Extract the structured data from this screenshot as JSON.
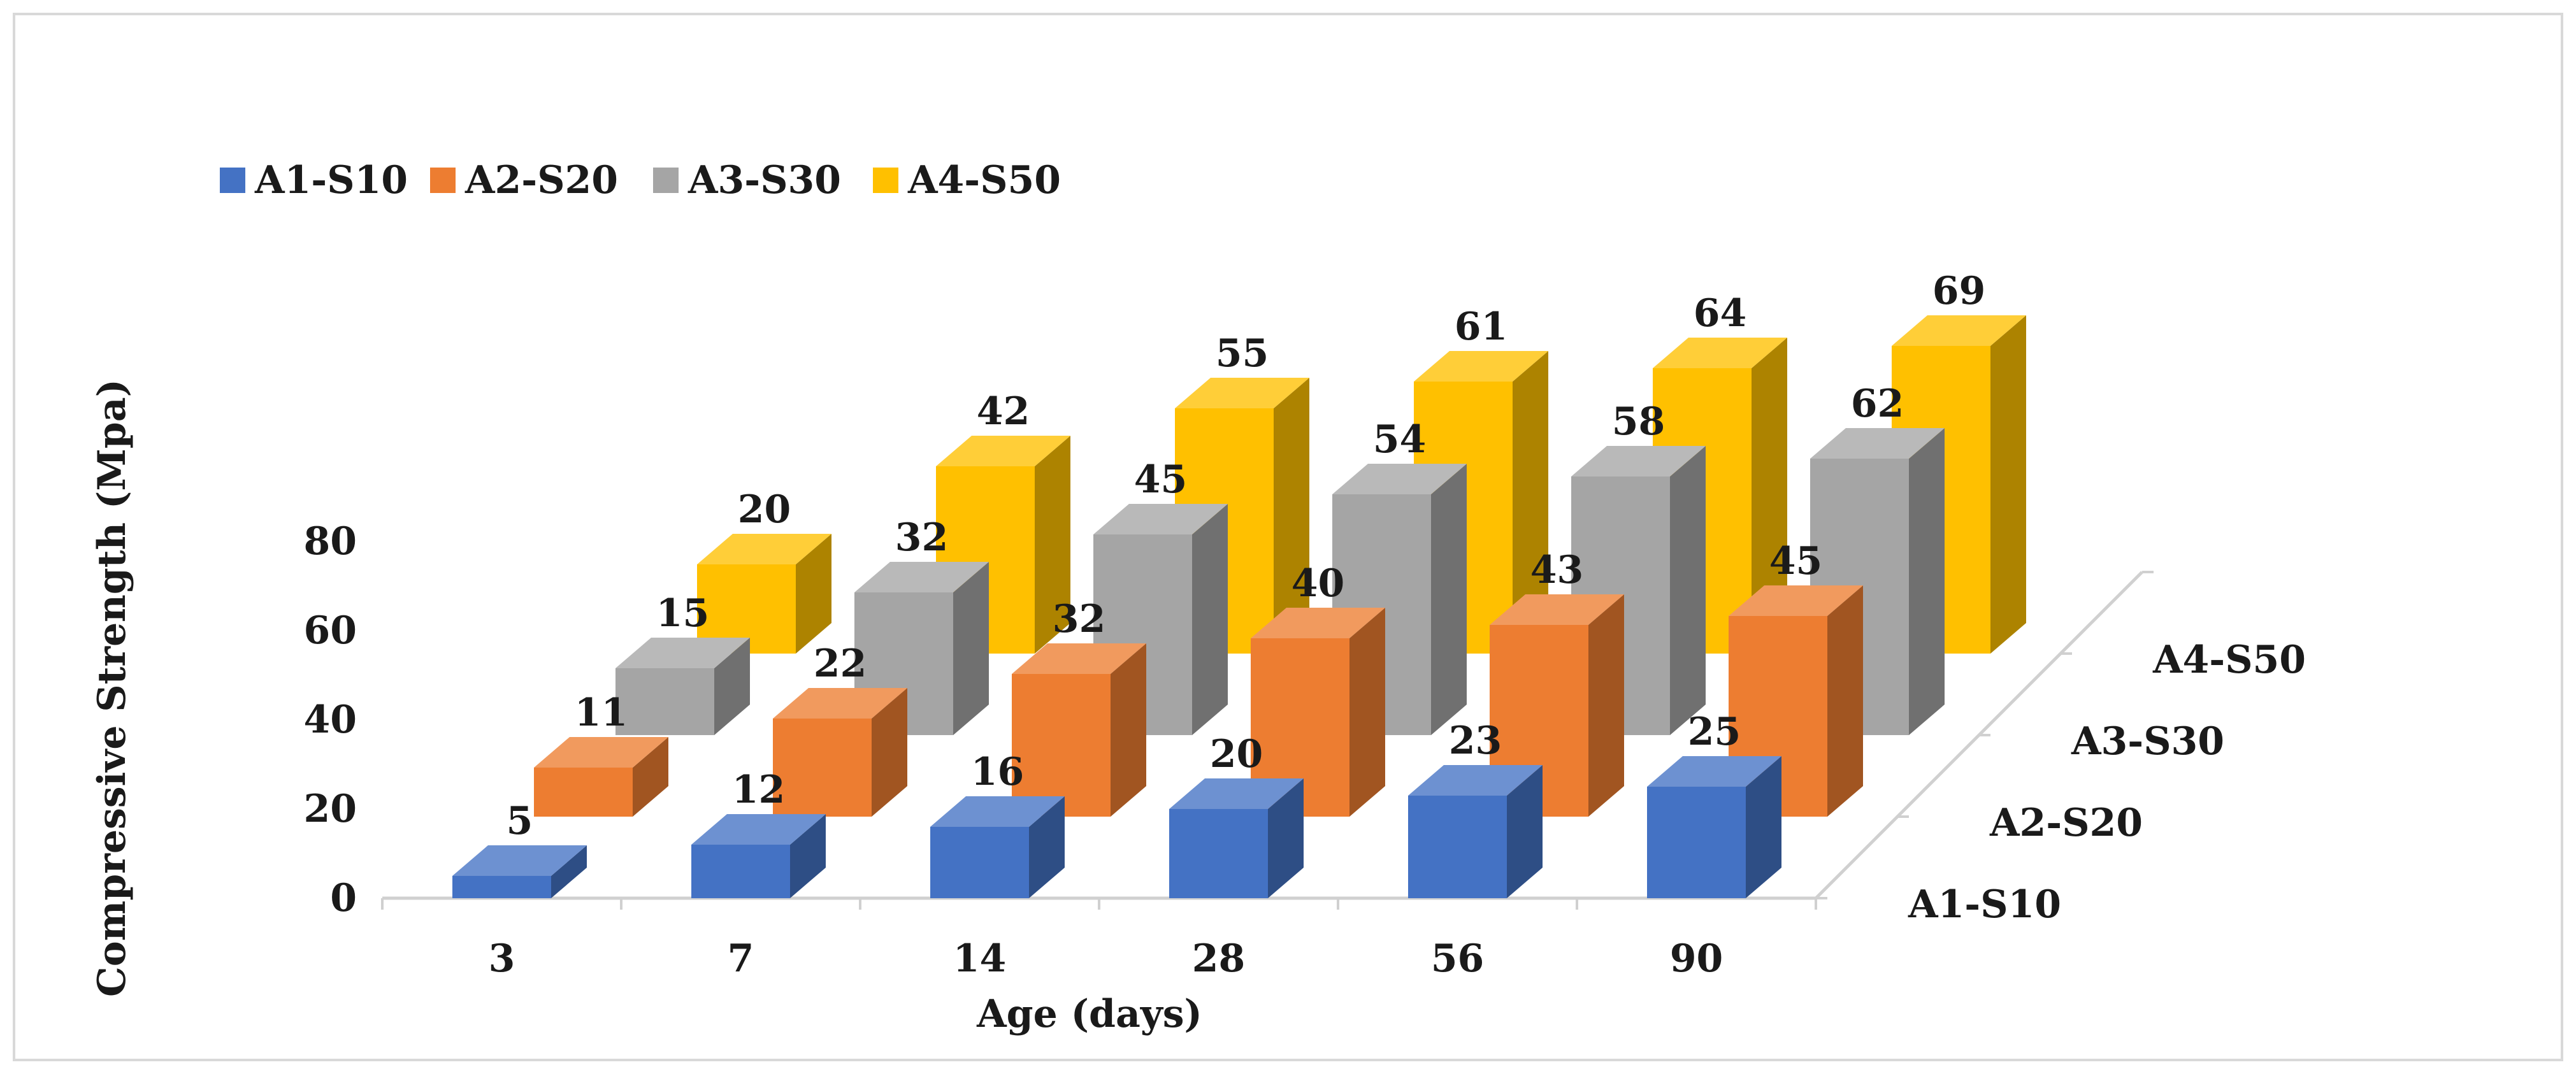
{
  "chart_data": {
    "type": "bar",
    "subtype": "3d-clustered-column",
    "title": "",
    "categories": [
      "3",
      "7",
      "14",
      "28",
      "56",
      "90"
    ],
    "series": [
      {
        "name": "A1-S10",
        "values": [
          5,
          12,
          16,
          20,
          23,
          25
        ],
        "color": "#4472C4"
      },
      {
        "name": "A2-S20",
        "values": [
          11,
          22,
          32,
          40,
          43,
          45
        ],
        "color": "#ED7D31"
      },
      {
        "name": "A3-S30",
        "values": [
          15,
          32,
          45,
          54,
          58,
          62
        ],
        "color": "#A5A5A5"
      },
      {
        "name": "A4-S50",
        "values": [
          20,
          42,
          55,
          61,
          64,
          69
        ],
        "color": "#FFC000"
      }
    ],
    "xlabel": "Age (days)",
    "ylabel": "Compressive Strength (Mpa)",
    "yticks": [
      0,
      20,
      40,
      60,
      80
    ],
    "ylim": [
      0,
      80
    ],
    "depth_labels": [
      "A1-S10",
      "A2-S20",
      "A3-S30",
      "A4-S50"
    ],
    "legend_position": "top-left",
    "grid": false
  }
}
